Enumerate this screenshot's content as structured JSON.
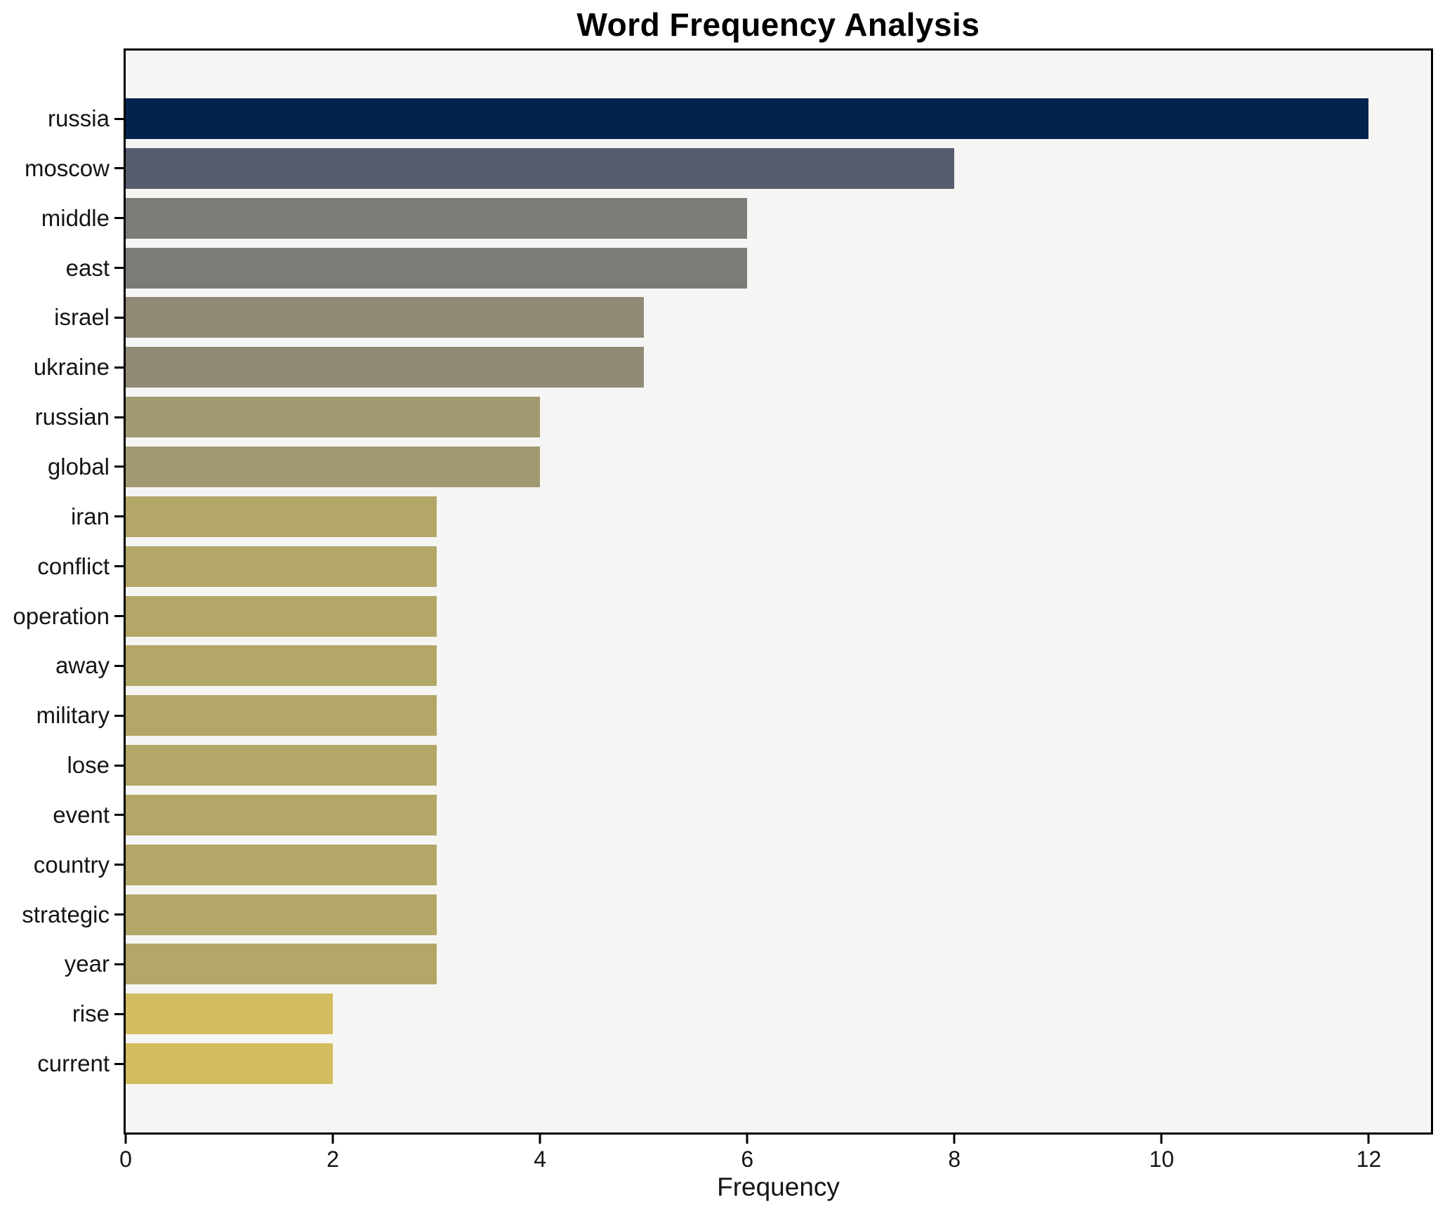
{
  "chart_data": {
    "type": "bar",
    "orientation": "horizontal",
    "title": "Word Frequency Analysis",
    "xlabel": "Frequency",
    "ylabel": "",
    "categories": [
      "russia",
      "moscow",
      "middle",
      "east",
      "israel",
      "ukraine",
      "russian",
      "global",
      "iran",
      "conflict",
      "operation",
      "away",
      "military",
      "lose",
      "event",
      "country",
      "strategic",
      "year",
      "rise",
      "current"
    ],
    "values": [
      12,
      8,
      6,
      6,
      5,
      5,
      4,
      4,
      3,
      3,
      3,
      3,
      3,
      3,
      3,
      3,
      3,
      3,
      2,
      2
    ],
    "bar_colors": [
      "#02234d",
      "#565c6d",
      "#7b7b77",
      "#7b7b77",
      "#908976",
      "#908976",
      "#a29970",
      "#a29970",
      "#b3a768",
      "#b3a768",
      "#b3a768",
      "#b3a768",
      "#b3a768",
      "#b3a768",
      "#b3a768",
      "#b3a768",
      "#b3a768",
      "#b3a768",
      "#d2bc5f",
      "#d2bc5f"
    ],
    "xticks": [
      0,
      2,
      4,
      6,
      8,
      10,
      12
    ],
    "xlim": [
      0,
      12.6
    ],
    "grid": false,
    "legend": false,
    "plot_background": "#f5f5f3",
    "figure_background": "#ffffff",
    "spine_color": "#000000",
    "colormap_note": "bars shaded dark navy (high frequency) to gold (low frequency)"
  }
}
